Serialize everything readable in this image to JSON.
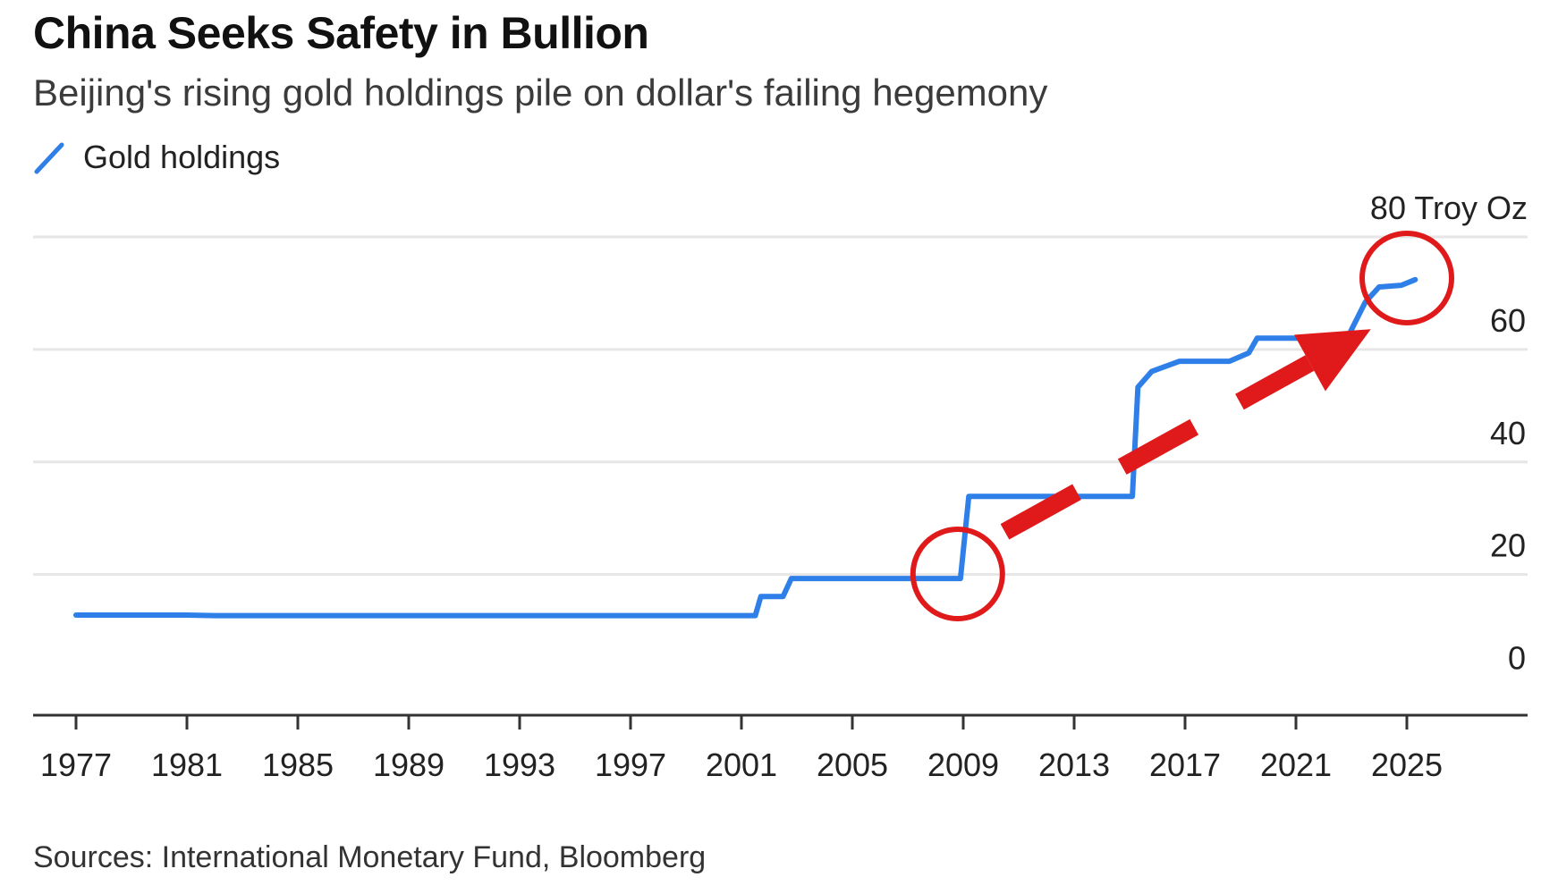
{
  "header": {
    "title": "China Seeks Safety in Bullion",
    "subtitle": "Beijing's rising gold holdings pile on dollar's failing hegemony"
  },
  "legend": {
    "label": "Gold holdings",
    "color": "#2f7fe8"
  },
  "footer": {
    "source": "Sources: International Monetary Fund, Bloomberg"
  },
  "annotation_color": "#e01a1a",
  "chart_data": {
    "type": "line",
    "title": "China Seeks Safety in Bullion",
    "subtitle": "Beijing's rising gold holdings pile on dollar's failing hegemony",
    "xlabel": "",
    "ylabel": "",
    "unit_label": "Troy Oz",
    "xlim": [
      1976.5,
      2030
    ],
    "ylim": [
      -5,
      80
    ],
    "yticks": [
      0,
      20,
      40,
      60,
      80
    ],
    "xticks": [
      1977,
      1981,
      1985,
      1989,
      1993,
      1997,
      2001,
      2005,
      2009,
      2013,
      2017,
      2021,
      2025
    ],
    "grid": true,
    "legend_position": "top-left",
    "series": [
      {
        "name": "Gold holdings",
        "color": "#2f7fe8",
        "points": [
          [
            1977,
            12.8
          ],
          [
            1981,
            12.8
          ],
          [
            1982,
            12.7
          ],
          [
            1990,
            12.7
          ],
          [
            2000,
            12.7
          ],
          [
            2001.5,
            12.7
          ],
          [
            2001.7,
            16.1
          ],
          [
            2002.5,
            16.1
          ],
          [
            2002.8,
            19.3
          ],
          [
            2008.9,
            19.3
          ],
          [
            2009.2,
            33.9
          ],
          [
            2015.1,
            33.9
          ],
          [
            2015.3,
            53.3
          ],
          [
            2015.8,
            56.1
          ],
          [
            2016.8,
            57.9
          ],
          [
            2018.6,
            57.9
          ],
          [
            2019.3,
            59.4
          ],
          [
            2019.6,
            62.0
          ],
          [
            2022.0,
            62.0
          ],
          [
            2022.9,
            62.5
          ],
          [
            2023.5,
            68.4
          ],
          [
            2024.0,
            71.1
          ],
          [
            2024.8,
            71.4
          ],
          [
            2025.3,
            72.4
          ]
        ]
      }
    ],
    "annotations": [
      {
        "type": "circle",
        "x": 2008.8,
        "y": 20.1
      },
      {
        "type": "circle",
        "x": 2025.0,
        "y": 72.7
      },
      {
        "type": "dashed-arrow",
        "from": [
          2010.5,
          27.6
        ],
        "to": [
          2023.7,
          63.6
        ]
      }
    ]
  }
}
